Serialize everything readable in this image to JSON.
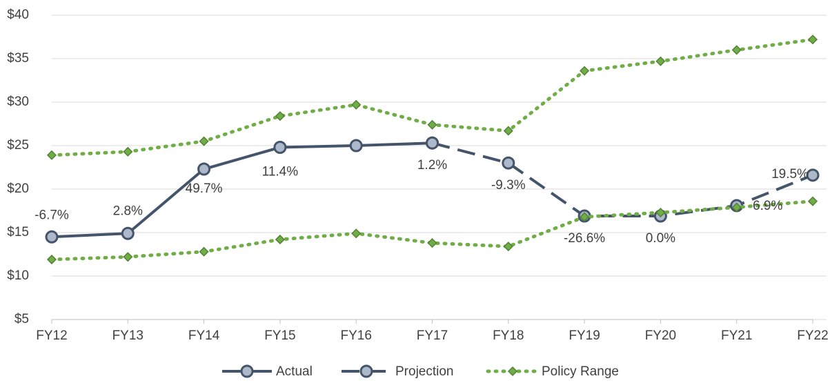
{
  "chart_data": {
    "type": "line",
    "categories": [
      "FY12",
      "FY13",
      "FY14",
      "FY15",
      "FY16",
      "FY17",
      "FY18",
      "FY19",
      "FY20",
      "FY21",
      "FY22"
    ],
    "ylim": [
      5,
      40
    ],
    "yticks": [
      {
        "value": 5,
        "label": "$5"
      },
      {
        "value": 10,
        "label": "$10"
      },
      {
        "value": 15,
        "label": "$15"
      },
      {
        "value": 20,
        "label": "$20"
      },
      {
        "value": 25,
        "label": "$25"
      },
      {
        "value": 30,
        "label": "$30"
      },
      {
        "value": 35,
        "label": "$35"
      },
      {
        "value": 40,
        "label": "$40"
      }
    ],
    "grid": true,
    "legend": "bottom",
    "series": [
      {
        "name": "Actual",
        "color": "#44546a",
        "marker_color": "#adb9ca",
        "dash": "solid",
        "values": [
          14.5,
          14.9,
          22.3,
          24.8,
          25.0,
          25.3,
          null,
          null,
          null,
          null,
          null
        ]
      },
      {
        "name": "Projection",
        "color": "#44546a",
        "marker_color": "#adb9ca",
        "dash": "dashed",
        "values": [
          null,
          null,
          null,
          null,
          null,
          25.3,
          23.0,
          16.9,
          16.9,
          18.1,
          21.6
        ]
      },
      {
        "name": "Policy Range",
        "color": "#70ad47",
        "marker_color": "#548235",
        "dash": "dotted",
        "upper": [
          23.9,
          24.3,
          25.5,
          28.4,
          29.7,
          27.4,
          26.7,
          33.6,
          34.7,
          36.0,
          37.2
        ],
        "lower": [
          11.9,
          12.2,
          12.8,
          14.2,
          14.9,
          13.8,
          13.4,
          16.8,
          17.3,
          17.9,
          18.6
        ]
      }
    ],
    "growth_labels": [
      "-6.7%",
      "2.8%",
      "49.7%",
      "11.4%",
      null,
      "1.2%",
      "-9.3%",
      "-26.6%",
      "0.0%",
      "6.9%",
      "19.5%"
    ]
  }
}
